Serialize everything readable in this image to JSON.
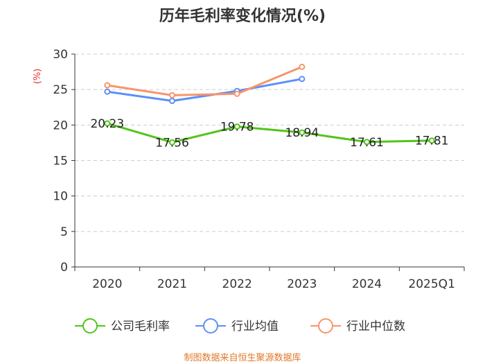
{
  "chart_data": {
    "type": "line",
    "title": "历年毛利率变化情况(%)",
    "ylabel": "(%)",
    "categories": [
      "2020",
      "2021",
      "2022",
      "2023",
      "2024",
      "2025Q1"
    ],
    "ylim": [
      0,
      30
    ],
    "yticks": [
      0,
      5,
      10,
      15,
      20,
      25,
      30
    ],
    "grid": true,
    "legend_position": "bottom",
    "series": [
      {
        "name": "公司毛利率",
        "color": "#52c41a",
        "values": [
          20.23,
          17.56,
          19.78,
          18.94,
          17.61,
          17.81
        ],
        "data_labels": [
          "20.23",
          "17.56",
          "19.78",
          "18.94",
          "17.61",
          "17.81"
        ]
      },
      {
        "name": "行业均值",
        "color": "#5b8ff9",
        "values": [
          24.7,
          23.4,
          24.8,
          26.5,
          null,
          null
        ]
      },
      {
        "name": "行业中位数",
        "color": "#f6956a",
        "values": [
          25.6,
          24.2,
          24.4,
          28.2,
          null,
          null
        ]
      }
    ]
  },
  "source_text": "制图数据来自恒生聚源数据库"
}
